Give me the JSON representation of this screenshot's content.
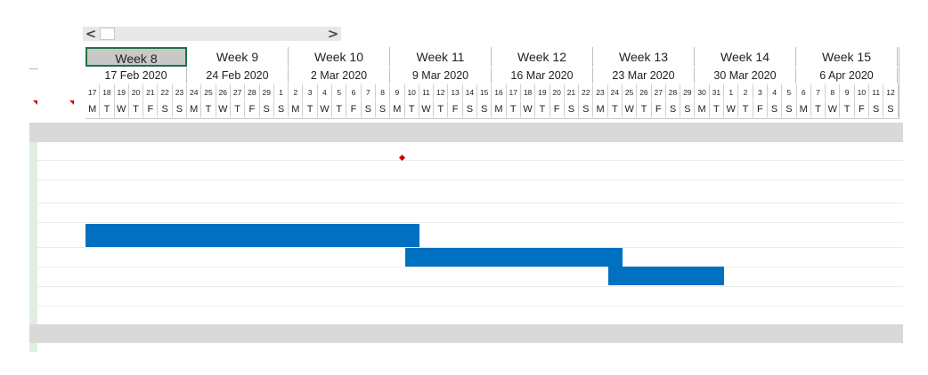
{
  "scrollbar": {
    "left_arrow": "<",
    "right_arrow": ">"
  },
  "weeks": [
    {
      "label": "Week 8",
      "date": "17 Feb 2020"
    },
    {
      "label": "Week 9",
      "date": "24 Feb 2020"
    },
    {
      "label": "Week 10",
      "date": "2 Mar 2020"
    },
    {
      "label": "Week 11",
      "date": "9 Mar 2020"
    },
    {
      "label": "Week 12",
      "date": "16 Mar 2020"
    },
    {
      "label": "Week 13",
      "date": "23 Mar 2020"
    },
    {
      "label": "Week 14",
      "date": "30 Mar 2020"
    },
    {
      "label": "Week 15",
      "date": "6 Apr 2020"
    }
  ],
  "days": [
    "17",
    "18",
    "19",
    "20",
    "21",
    "22",
    "23",
    "24",
    "25",
    "26",
    "27",
    "28",
    "29",
    "1",
    "2",
    "3",
    "4",
    "5",
    "6",
    "7",
    "8",
    "9",
    "10",
    "11",
    "12",
    "13",
    "14",
    "15",
    "16",
    "17",
    "18",
    "19",
    "20",
    "21",
    "22",
    "23",
    "24",
    "25",
    "26",
    "27",
    "28",
    "29",
    "30",
    "31",
    "1",
    "2",
    "3",
    "4",
    "5",
    "6",
    "7",
    "8",
    "9",
    "10",
    "11",
    "12"
  ],
  "weekday_letters": [
    "M",
    "T",
    "W",
    "T",
    "F",
    "S",
    "S"
  ],
  "selected_week_index": 0,
  "colors": {
    "task_bar": "#0070c0",
    "milestone": "#d00000",
    "selection_border": "#1e7145"
  },
  "tasks": [
    {
      "start_day": 0,
      "duration_days": 23
    },
    {
      "start_day": 22,
      "duration_days": 15
    },
    {
      "start_day": 36,
      "duration_days": 8
    }
  ]
}
